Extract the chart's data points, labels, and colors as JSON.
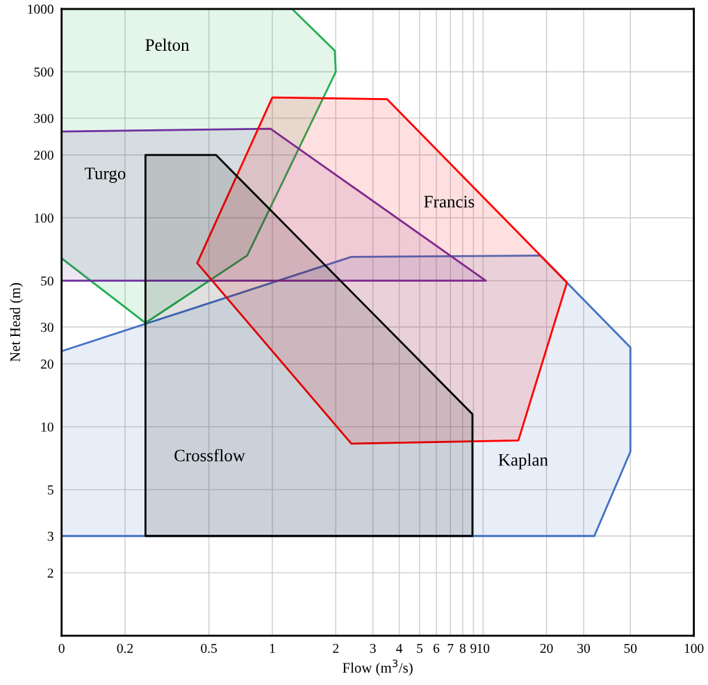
{
  "chart_data": {
    "type": "area",
    "xlabel": "Flow (m$^{3}$/s)",
    "ylabel": "Net Head (m)",
    "log": "xy",
    "grid": true,
    "xlim": [
      0.1,
      100
    ],
    "ylim": [
      1,
      1000
    ],
    "xticks": [
      {
        "value": 0.1,
        "label": "0"
      },
      0.2,
      0.5,
      1,
      2,
      3,
      4,
      5,
      6,
      7,
      8,
      9,
      10,
      20,
      30,
      50,
      100
    ],
    "yticks": [
      2,
      3,
      5,
      10,
      20,
      30,
      50,
      100,
      200,
      300,
      500,
      1000
    ],
    "series": [
      {
        "name": "Kaplan",
        "color": "#4472c4",
        "x": [
          0.1,
          2.37,
          18.7,
          50,
          50,
          33.7,
          0.1
        ],
        "values": [
          23,
          65,
          66,
          24,
          7.6,
          3,
          3
        ]
      },
      {
        "name": "Pelton",
        "color": "#22b050",
        "x": [
          0.1,
          1.24,
          1.98,
          2.0,
          0.76,
          0.25,
          0.1
        ],
        "values": [
          1000,
          1000,
          630,
          500,
          66,
          31.4,
          64
        ]
      },
      {
        "name": "Turgo",
        "color": "#7030a0",
        "x": [
          0.1,
          0.98,
          10.3,
          0.1
        ],
        "values": [
          259,
          267,
          50,
          50
        ]
      },
      {
        "name": "Francis",
        "color": "#ff0000",
        "x": [
          1.0,
          3.5,
          25,
          14.7,
          2.37,
          0.44
        ],
        "values": [
          377,
          370,
          49,
          8.6,
          8.3,
          60.7
        ]
      },
      {
        "name": "Crossflow",
        "color": "#000000",
        "x": [
          0.25,
          0.54,
          8.9,
          8.9,
          0.25
        ],
        "values": [
          200,
          200,
          11.5,
          3,
          3
        ]
      }
    ]
  }
}
